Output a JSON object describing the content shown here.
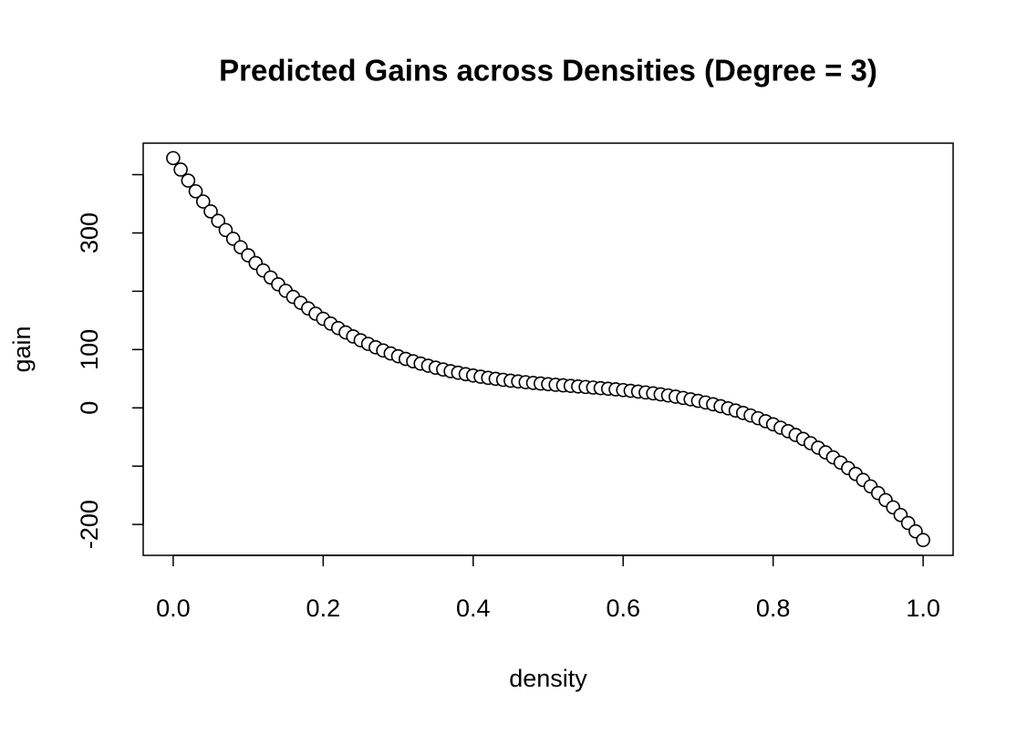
{
  "chart_data": {
    "type": "scatter",
    "title": "Predicted Gains across Densities (Degree = 3)",
    "xlabel": "density",
    "ylabel": "gain",
    "x": [
      0,
      0.01,
      0.02,
      0.03,
      0.04,
      0.05,
      0.06,
      0.07,
      0.08,
      0.09,
      0.1,
      0.11,
      0.12,
      0.13,
      0.14,
      0.15,
      0.16,
      0.17,
      0.18,
      0.19,
      0.2,
      0.21,
      0.22,
      0.23,
      0.24,
      0.25,
      0.26,
      0.27,
      0.28,
      0.29,
      0.3,
      0.31,
      0.32,
      0.33,
      0.34,
      0.35,
      0.36,
      0.37,
      0.38,
      0.39,
      0.4,
      0.41,
      0.42,
      0.43,
      0.44,
      0.45,
      0.46,
      0.47,
      0.48,
      0.49,
      0.5,
      0.51,
      0.52,
      0.53,
      0.54,
      0.55,
      0.56,
      0.57,
      0.58,
      0.59,
      0.6,
      0.61,
      0.62,
      0.63,
      0.64,
      0.65,
      0.66,
      0.67,
      0.68,
      0.69,
      0.7,
      0.71,
      0.72,
      0.73,
      0.74,
      0.75,
      0.76,
      0.77,
      0.78,
      0.79,
      0.8,
      0.81,
      0.82,
      0.83,
      0.84,
      0.85,
      0.86,
      0.87,
      0.88,
      0.89,
      0.9,
      0.91,
      0.92,
      0.93,
      0.94,
      0.95,
      0.96,
      0.97,
      0.98,
      0.99,
      1
    ],
    "values": [
      428.4,
      408.7,
      389.8,
      371.5,
      353.9,
      337.0,
      320.7,
      305.0,
      290.0,
      275.5,
      261.7,
      248.4,
      235.7,
      223.6,
      211.9,
      200.8,
      190.3,
      180.2,
      170.6,
      161.5,
      152.8,
      144.6,
      136.8,
      129.4,
      122.5,
      115.9,
      109.7,
      103.9,
      98.4,
      93.3,
      88.5,
      84.0,
      79.8,
      75.9,
      72.3,
      68.9,
      65.8,
      62.9,
      60.3,
      57.8,
      55.5,
      53.4,
      51.5,
      49.8,
      48.1,
      46.6,
      45.3,
      44.0,
      42.8,
      41.7,
      40.6,
      39.6,
      38.6,
      37.7,
      36.7,
      35.8,
      34.8,
      33.8,
      32.8,
      31.7,
      30.5,
      29.3,
      27.9,
      26.4,
      24.9,
      23.1,
      21.3,
      19.2,
      17.0,
      14.6,
      12.0,
      9.2,
      6.1,
      2.8,
      -0.8,
      -4.6,
      -8.7,
      -13.1,
      -17.8,
      -22.9,
      -28.2,
      -34.0,
      -40.0,
      -46.5,
      -53.3,
      -60.6,
      -68.3,
      -76.4,
      -84.9,
      -93.9,
      -103.4,
      -113.3,
      -123.7,
      -134.7,
      -146.2,
      -158.2,
      -170.7,
      -183.8,
      -197.5,
      -211.8,
      -226.7
    ],
    "color": "#000000",
    "xlim": [
      -0.04,
      1.04
    ],
    "ylim": [
      -253,
      454
    ],
    "xticks": [
      {
        "value": 0,
        "label": "0.0"
      },
      0.2,
      0.4,
      0.6,
      0.8,
      {
        "value": 1,
        "label": "1.0"
      }
    ],
    "yticks": [
      -200,
      0,
      100,
      300
    ],
    "yticks_unlabeled": [
      -100,
      200,
      400
    ]
  }
}
